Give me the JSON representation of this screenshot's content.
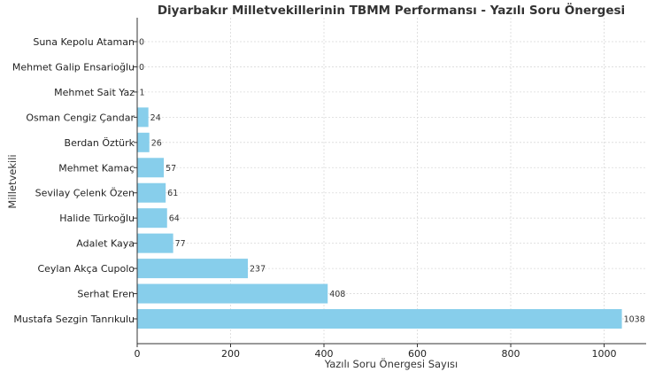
{
  "chart_data": {
    "type": "bar",
    "orientation": "horizontal",
    "title": "Diyarbakır Milletvekillerinin TBMM Performansı - Yazılı Soru Önergesi",
    "xlabel": "Yazılı Soru Önergesi Sayısı",
    "ylabel": "Milletvekili",
    "xlim": [
      0,
      1090
    ],
    "xticks": [
      0,
      200,
      400,
      600,
      800,
      1000
    ],
    "grid": true,
    "bar_color": "#87ceeb",
    "categories": [
      "Mustafa Sezgin Tanrıkulu",
      "Serhat Eren",
      "Ceylan Akça Cupolo",
      "Adalet Kaya",
      "Halide Türkoğlu",
      "Sevilay Çelenk Özen",
      "Mehmet Kamaç",
      "Berdan Öztürk",
      "Osman Cengiz Çandar",
      "Mehmet Sait Yaz",
      "Mehmet Galip Ensarioğlu",
      "Suna Kepolu Ataman"
    ],
    "values": [
      1038,
      408,
      237,
      77,
      64,
      61,
      57,
      26,
      24,
      1,
      0,
      0
    ]
  }
}
